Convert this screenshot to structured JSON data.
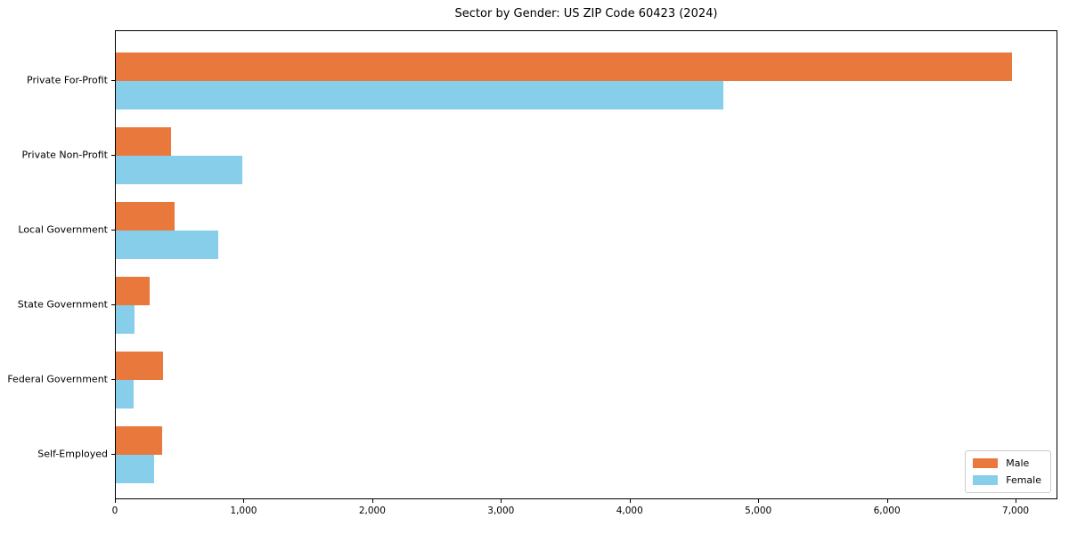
{
  "title": "Sector by Gender: US ZIP Code 60423 (2024)",
  "colors": {
    "male": "#E8783C",
    "female": "#87CEEB",
    "spine": "#000000",
    "legend_border": "#cccccc",
    "background": "#ffffff",
    "text": "#000000"
  },
  "legend": {
    "position": "lower right",
    "items": [
      {
        "label": "Male",
        "color": "#E8783C"
      },
      {
        "label": "Female",
        "color": "#87CEEB"
      }
    ]
  },
  "chart_data": {
    "type": "bar",
    "orientation": "horizontal",
    "title": "Sector by Gender: US ZIP Code 60423 (2024)",
    "categories": [
      "Private For-Profit",
      "Private Non-Profit",
      "Local Government",
      "State Government",
      "Federal Government",
      "Self-Employed"
    ],
    "series": [
      {
        "name": "Male",
        "color": "#E8783C",
        "values": [
          6965,
          430,
          460,
          260,
          365,
          360
        ]
      },
      {
        "name": "Female",
        "color": "#87CEEB",
        "values": [
          4720,
          980,
          795,
          145,
          140,
          295
        ]
      }
    ],
    "xlabel": "",
    "ylabel": "",
    "xlim": [
      0,
      7325
    ],
    "x_ticks": [
      0,
      1000,
      2000,
      3000,
      4000,
      5000,
      6000,
      7000
    ],
    "x_tick_labels": [
      "0",
      "1,000",
      "2,000",
      "3,000",
      "4,000",
      "5,000",
      "6,000",
      "7,000"
    ],
    "grid": false,
    "legend_position": "lower right"
  }
}
